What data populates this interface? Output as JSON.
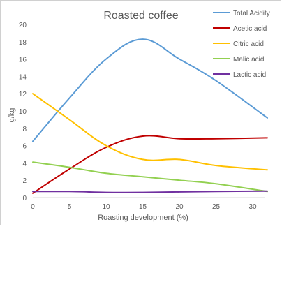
{
  "chart_data": {
    "type": "line",
    "title": "Roasted coffee",
    "xlabel": "Roasting development (%)",
    "ylabel": "g/kg",
    "xlim": [
      0,
      32
    ],
    "ylim": [
      0,
      20
    ],
    "xticks": [
      0,
      5,
      10,
      15,
      20,
      25,
      30
    ],
    "yticks": [
      0,
      2,
      4,
      6,
      8,
      10,
      12,
      14,
      16,
      18,
      20
    ],
    "grid": false,
    "legend_position": "top-right",
    "x": [
      0,
      5,
      10,
      15,
      20,
      25,
      32
    ],
    "series": [
      {
        "name": "Total Acidity",
        "color": "#5b9bd5",
        "values": [
          6.5,
          11.5,
          16.0,
          18.3,
          16.0,
          13.5,
          9.2
        ]
      },
      {
        "name": "Acetic acid",
        "color": "#c00000",
        "values": [
          0.5,
          3.3,
          5.8,
          7.1,
          6.8,
          6.8,
          6.9
        ]
      },
      {
        "name": "Citric acid",
        "color": "#ffc000",
        "values": [
          12.0,
          9.0,
          6.0,
          4.4,
          4.4,
          3.7,
          3.2
        ]
      },
      {
        "name": "Malic acid",
        "color": "#92d050",
        "values": [
          4.1,
          3.5,
          2.8,
          2.4,
          2.0,
          1.6,
          0.7
        ]
      },
      {
        "name": "Lactic acid",
        "color": "#7030a0",
        "values": [
          0.7,
          0.7,
          0.6,
          0.6,
          0.65,
          0.7,
          0.75
        ]
      }
    ]
  }
}
